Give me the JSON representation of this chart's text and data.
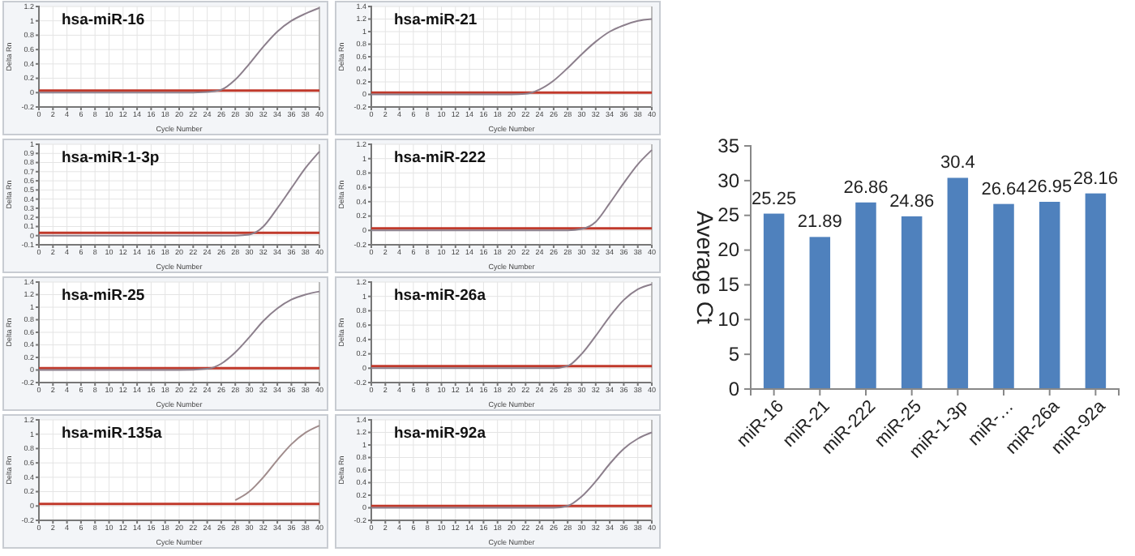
{
  "chart_data": [
    {
      "type": "line",
      "title": "hsa-miR-16",
      "xlabel": "Cycle Number",
      "ylabel": "Delta Rn",
      "xlim": [
        0,
        40
      ],
      "xticks": [
        0,
        2,
        4,
        6,
        8,
        10,
        12,
        14,
        16,
        18,
        20,
        22,
        24,
        26,
        28,
        30,
        32,
        34,
        36,
        38,
        40
      ],
      "ylim": [
        -0.2,
        1.2
      ],
      "yticks": [
        -0.2,
        0,
        0.2,
        0.4,
        0.6,
        0.8,
        1,
        1.2
      ],
      "grid": true,
      "marker": "none",
      "line_style": "solid",
      "series": [
        {
          "color": "#8c7f8c",
          "x": [
            0,
            10,
            20,
            24,
            26,
            28,
            30,
            32,
            34,
            36,
            38,
            40
          ],
          "values": [
            0,
            0,
            0,
            0.01,
            0.04,
            0.18,
            0.4,
            0.64,
            0.85,
            1.0,
            1.1,
            1.18
          ]
        }
      ],
      "ref_lines": [
        {
          "axis": "y",
          "value": 0.03,
          "color": "#c0392b"
        }
      ]
    },
    {
      "type": "line",
      "title": "hsa-miR-21",
      "xlabel": "Cycle Number",
      "ylabel": "Delta Rn",
      "xlim": [
        0,
        40
      ],
      "xticks": [
        0,
        2,
        4,
        6,
        8,
        10,
        12,
        14,
        16,
        18,
        20,
        22,
        24,
        26,
        28,
        30,
        32,
        34,
        36,
        38,
        40
      ],
      "ylim": [
        -0.2,
        1.4
      ],
      "yticks": [
        -0.2,
        0,
        0.2,
        0.4,
        0.6,
        0.8,
        1,
        1.2,
        1.4
      ],
      "grid": true,
      "marker": "none",
      "line_style": "solid",
      "series": [
        {
          "color": "#8c7f8c",
          "x": [
            0,
            10,
            20,
            22,
            24,
            26,
            28,
            30,
            32,
            34,
            36,
            38,
            40
          ],
          "values": [
            0,
            0,
            0,
            0.01,
            0.08,
            0.22,
            0.42,
            0.64,
            0.84,
            1.0,
            1.1,
            1.17,
            1.2
          ]
        }
      ],
      "ref_lines": [
        {
          "axis": "y",
          "value": 0.03,
          "color": "#c0392b"
        }
      ]
    },
    {
      "type": "line",
      "title": "hsa-miR-1-3p",
      "xlabel": "Cycle Number",
      "ylabel": "Delta Rn",
      "xlim": [
        0,
        40
      ],
      "xticks": [
        0,
        2,
        4,
        6,
        8,
        10,
        12,
        14,
        16,
        18,
        20,
        22,
        24,
        26,
        28,
        30,
        32,
        34,
        36,
        38,
        40
      ],
      "ylim": [
        -0.1,
        1
      ],
      "yticks": [
        -0.1,
        0,
        0.1,
        0.2,
        0.3,
        0.4,
        0.5,
        0.6,
        0.7,
        0.8,
        0.9,
        1
      ],
      "grid": true,
      "marker": "none",
      "line_style": "solid",
      "series": [
        {
          "color": "#8c7f8c",
          "x": [
            0,
            10,
            20,
            28,
            30,
            31,
            32,
            34,
            36,
            38,
            40
          ],
          "values": [
            0,
            0,
            0,
            0,
            0.01,
            0.04,
            0.1,
            0.3,
            0.52,
            0.74,
            0.92
          ]
        }
      ],
      "ref_lines": [
        {
          "axis": "y",
          "value": 0.03,
          "color": "#c0392b"
        }
      ]
    },
    {
      "type": "line",
      "title": "hsa-miR-222",
      "xlabel": "Cycle Number",
      "ylabel": "Delta Rn",
      "xlim": [
        0,
        40
      ],
      "xticks": [
        0,
        2,
        4,
        6,
        8,
        10,
        12,
        14,
        16,
        18,
        20,
        22,
        24,
        26,
        28,
        30,
        32,
        34,
        36,
        38,
        40
      ],
      "ylim": [
        -0.2,
        1.2
      ],
      "yticks": [
        -0.2,
        0,
        0.2,
        0.4,
        0.6,
        0.8,
        1,
        1.2
      ],
      "grid": true,
      "marker": "none",
      "line_style": "solid",
      "series": [
        {
          "color": "#8c7f8c",
          "x": [
            0,
            10,
            20,
            28,
            30,
            32,
            34,
            36,
            38,
            40
          ],
          "values": [
            0,
            0,
            0,
            0,
            0.02,
            0.12,
            0.38,
            0.66,
            0.92,
            1.12
          ]
        }
      ],
      "ref_lines": [
        {
          "axis": "y",
          "value": 0.03,
          "color": "#c0392b"
        }
      ]
    },
    {
      "type": "line",
      "title": "hsa-miR-25",
      "xlabel": "Cycle Number",
      "ylabel": "Delta Rn",
      "xlim": [
        0,
        40
      ],
      "xticks": [
        0,
        2,
        4,
        6,
        8,
        10,
        12,
        14,
        16,
        18,
        20,
        22,
        24,
        26,
        28,
        30,
        32,
        34,
        36,
        38,
        40
      ],
      "ylim": [
        -0.2,
        1.4
      ],
      "yticks": [
        -0.2,
        0,
        0.2,
        0.4,
        0.6,
        0.8,
        1,
        1.2,
        1.4
      ],
      "grid": true,
      "marker": "none",
      "line_style": "solid",
      "series": [
        {
          "color": "#8c7f8c",
          "x": [
            0,
            10,
            20,
            24,
            26,
            28,
            30,
            32,
            34,
            36,
            38,
            40
          ],
          "values": [
            0,
            0,
            0,
            0.02,
            0.1,
            0.28,
            0.52,
            0.78,
            0.98,
            1.12,
            1.2,
            1.25
          ]
        }
      ],
      "ref_lines": [
        {
          "axis": "y",
          "value": 0.03,
          "color": "#c0392b"
        }
      ]
    },
    {
      "type": "line",
      "title": "hsa-miR-26a",
      "xlabel": "Cycle Number",
      "ylabel": "Delta Rn",
      "xlim": [
        0,
        40
      ],
      "xticks": [
        0,
        2,
        4,
        6,
        8,
        10,
        12,
        14,
        16,
        18,
        20,
        22,
        24,
        26,
        28,
        30,
        32,
        34,
        36,
        38,
        40
      ],
      "ylim": [
        -0.2,
        1.2
      ],
      "yticks": [
        -0.2,
        0,
        0.2,
        0.4,
        0.6,
        0.8,
        1,
        1.2
      ],
      "grid": true,
      "marker": "none",
      "line_style": "solid",
      "series": [
        {
          "color": "#8c7f8c",
          "x": [
            0,
            10,
            20,
            26,
            28,
            30,
            32,
            34,
            36,
            38,
            40
          ],
          "values": [
            0,
            0,
            0,
            0,
            0.03,
            0.2,
            0.45,
            0.72,
            0.95,
            1.1,
            1.17
          ]
        }
      ],
      "ref_lines": [
        {
          "axis": "y",
          "value": 0.03,
          "color": "#c0392b"
        }
      ]
    },
    {
      "type": "line",
      "title": "hsa-miR-135a",
      "xlabel": "Cycle Number",
      "ylabel": "Delta Rn",
      "xlim": [
        0,
        40
      ],
      "xticks": [
        0,
        2,
        4,
        6,
        8,
        10,
        12,
        14,
        16,
        18,
        20,
        22,
        24,
        26,
        28,
        30,
        32,
        34,
        36,
        38,
        40
      ],
      "ylim": [
        -0.2,
        1.2
      ],
      "yticks": [
        -0.2,
        0,
        0.2,
        0.4,
        0.6,
        0.8,
        1,
        1.2
      ],
      "grid": true,
      "marker": "none",
      "line_style": "solid",
      "series": [
        {
          "color": "#a08c8c",
          "x": [
            28,
            30,
            32,
            34,
            36,
            38,
            40
          ],
          "values": [
            0.08,
            0.2,
            0.4,
            0.64,
            0.86,
            1.02,
            1.12
          ]
        }
      ],
      "ref_lines": [
        {
          "axis": "y",
          "value": 0.03,
          "color": "#c0392b"
        }
      ]
    },
    {
      "type": "line",
      "title": "hsa-miR-92a",
      "xlabel": "Cycle Number",
      "ylabel": "Delta Rn",
      "xlim": [
        0,
        40
      ],
      "xticks": [
        0,
        2,
        4,
        6,
        8,
        10,
        12,
        14,
        16,
        18,
        20,
        22,
        24,
        26,
        28,
        30,
        32,
        34,
        36,
        38,
        40
      ],
      "ylim": [
        -0.2,
        1.4
      ],
      "yticks": [
        -0.2,
        0,
        0.2,
        0.4,
        0.6,
        0.8,
        1,
        1.2,
        1.4
      ],
      "grid": true,
      "marker": "none",
      "line_style": "solid",
      "series": [
        {
          "color": "#8c7f8c",
          "x": [
            0,
            10,
            20,
            26,
            28,
            30,
            32,
            34,
            36,
            38,
            40
          ],
          "values": [
            0,
            0,
            0,
            0,
            0.03,
            0.18,
            0.42,
            0.7,
            0.94,
            1.1,
            1.2
          ]
        }
      ],
      "ref_lines": [
        {
          "axis": "y",
          "value": 0.03,
          "color": "#c0392b"
        }
      ]
    },
    {
      "type": "bar",
      "ylabel": "Average Ct",
      "categories": [
        "miR-16",
        "miR-21",
        "miR-222",
        "miR-25",
        "miR-1-3p",
        "miR-…",
        "miR-26a",
        "miR-92a"
      ],
      "values": [
        25.25,
        21.89,
        26.86,
        24.86,
        30.4,
        26.64,
        26.95,
        28.16
      ],
      "color": "#4f81bd",
      "ylim": [
        0,
        35
      ],
      "yticks": [
        0,
        5,
        10,
        15,
        20,
        25,
        30,
        35
      ],
      "data_labels": true,
      "grid": false
    }
  ]
}
